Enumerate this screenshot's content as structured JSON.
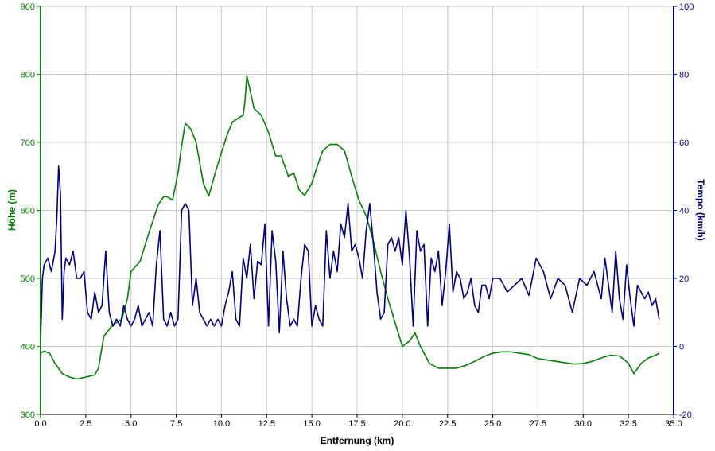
{
  "chart_data": {
    "type": "line",
    "xlabel": "Entfernung (km)",
    "ylabel_left": "Höhe (m)",
    "ylabel_right": "Tempo (km/h)",
    "xlim": [
      0,
      35
    ],
    "ylim_left": [
      300,
      900
    ],
    "ylim_right": [
      -20,
      100
    ],
    "x_ticks": [
      "0.0",
      "2.5",
      "5.0",
      "7.5",
      "10.0",
      "12.5",
      "15.0",
      "17.5",
      "20.0",
      "22.5",
      "25.0",
      "27.5",
      "30.0",
      "32.5",
      "35.0"
    ],
    "y_left_ticks": [
      "300",
      "400",
      "500",
      "600",
      "700",
      "800",
      "900"
    ],
    "y_right_ticks": [
      "-20",
      "0",
      "20",
      "40",
      "60",
      "80",
      "100"
    ],
    "grid": true,
    "colors": {
      "elevation": "#008000",
      "speed": "#00007f",
      "grid": "#c8c8c8",
      "axis_left": "#008000",
      "axis_right": "#00007f",
      "axis_bottom": "#000000"
    },
    "series": [
      {
        "axis": "left",
        "x": [
          0.0,
          0.2,
          0.5,
          0.8,
          1.2,
          1.6,
          2.0,
          2.5,
          3.0,
          3.2,
          3.5,
          4.0,
          4.5,
          4.8,
          5.0,
          5.5,
          6.0,
          6.5,
          6.8,
          7.0,
          7.3,
          7.6,
          7.8,
          8.0,
          8.3,
          8.6,
          8.8,
          9.0,
          9.3,
          9.6,
          10.0,
          10.3,
          10.6,
          11.0,
          11.2,
          11.3,
          11.4,
          11.6,
          11.8,
          12.2,
          12.6,
          13.0,
          13.3,
          13.7,
          14.0,
          14.3,
          14.6,
          15.0,
          15.3,
          15.6,
          16.0,
          16.4,
          16.8,
          17.2,
          17.6,
          18.0,
          18.4,
          18.8,
          19.2,
          19.6,
          20.0,
          20.4,
          20.7,
          21.0,
          21.5,
          22.0,
          22.5,
          23.0,
          23.5,
          24.0,
          24.5,
          25.0,
          25.5,
          26.0,
          26.5,
          27.0,
          27.5,
          28.0,
          28.5,
          29.0,
          29.5,
          30.0,
          30.5,
          31.0,
          31.5,
          32.0,
          32.3,
          32.5,
          32.8,
          33.2,
          33.6,
          34.0,
          34.2
        ],
        "y": [
          390,
          393,
          390,
          375,
          360,
          355,
          352,
          355,
          358,
          368,
          415,
          432,
          440,
          470,
          510,
          525,
          568,
          608,
          620,
          620,
          615,
          655,
          695,
          728,
          720,
          700,
          670,
          640,
          621,
          650,
          685,
          710,
          730,
          737,
          740,
          760,
          798,
          775,
          750,
          740,
          715,
          680,
          680,
          650,
          655,
          630,
          622,
          640,
          665,
          688,
          697,
          697,
          688,
          650,
          615,
          592,
          555,
          510,
          470,
          435,
          400,
          408,
          420,
          400,
          375,
          368,
          368,
          368,
          372,
          378,
          385,
          390,
          392,
          392,
          390,
          388,
          382,
          380,
          378,
          376,
          374,
          375,
          378,
          383,
          387,
          386,
          380,
          375,
          360,
          375,
          383,
          387,
          390
        ]
      },
      {
        "axis": "right",
        "x": [
          0.0,
          0.1,
          0.2,
          0.4,
          0.6,
          0.8,
          0.9,
          1.0,
          1.1,
          1.2,
          1.3,
          1.4,
          1.6,
          1.8,
          2.0,
          2.2,
          2.4,
          2.6,
          2.8,
          3.0,
          3.2,
          3.4,
          3.6,
          3.8,
          4.0,
          4.2,
          4.4,
          4.6,
          4.8,
          5.0,
          5.2,
          5.4,
          5.6,
          5.8,
          6.0,
          6.2,
          6.4,
          6.6,
          6.8,
          7.0,
          7.2,
          7.4,
          7.6,
          7.8,
          8.0,
          8.2,
          8.4,
          8.6,
          8.8,
          9.0,
          9.2,
          9.4,
          9.6,
          9.8,
          10.0,
          10.2,
          10.4,
          10.6,
          10.8,
          11.0,
          11.2,
          11.4,
          11.6,
          11.8,
          12.0,
          12.2,
          12.4,
          12.6,
          12.8,
          13.0,
          13.2,
          13.4,
          13.6,
          13.8,
          14.0,
          14.2,
          14.4,
          14.6,
          14.8,
          15.0,
          15.2,
          15.4,
          15.6,
          15.8,
          16.0,
          16.2,
          16.4,
          16.6,
          16.8,
          17.0,
          17.2,
          17.4,
          17.6,
          17.8,
          18.0,
          18.2,
          18.4,
          18.6,
          18.8,
          19.0,
          19.2,
          19.4,
          19.6,
          19.8,
          20.0,
          20.2,
          20.4,
          20.6,
          20.8,
          21.0,
          21.2,
          21.4,
          21.6,
          21.8,
          22.0,
          22.2,
          22.4,
          22.6,
          22.8,
          23.0,
          23.2,
          23.4,
          23.6,
          23.8,
          24.0,
          24.2,
          24.4,
          24.6,
          24.8,
          25.0,
          25.4,
          25.8,
          26.2,
          26.6,
          27.0,
          27.4,
          27.8,
          28.2,
          28.6,
          29.0,
          29.4,
          29.8,
          30.2,
          30.6,
          31.0,
          31.2,
          31.4,
          31.6,
          31.8,
          32.0,
          32.2,
          32.4,
          32.6,
          32.8,
          33.0,
          33.2,
          33.4,
          33.6,
          33.8,
          34.0,
          34.2
        ],
        "y": [
          2,
          20,
          24,
          26,
          22,
          28,
          38,
          53,
          45,
          8,
          22,
          26,
          24,
          28,
          20,
          20,
          22,
          10,
          8,
          16,
          10,
          12,
          28,
          10,
          6,
          8,
          6,
          12,
          8,
          6,
          8,
          12,
          6,
          8,
          10,
          6,
          24,
          34,
          8,
          6,
          10,
          6,
          8,
          40,
          42,
          40,
          12,
          20,
          10,
          8,
          6,
          8,
          6,
          8,
          6,
          12,
          16,
          22,
          8,
          6,
          26,
          20,
          30,
          14,
          25,
          24,
          36,
          6,
          34,
          25,
          4,
          28,
          14,
          6,
          8,
          6,
          20,
          30,
          28,
          6,
          12,
          8,
          6,
          34,
          20,
          28,
          22,
          36,
          32,
          42,
          28,
          30,
          26,
          20,
          34,
          42,
          30,
          16,
          8,
          10,
          30,
          32,
          28,
          32,
          24,
          40,
          26,
          6,
          34,
          28,
          30,
          6,
          26,
          22,
          28,
          12,
          22,
          36,
          16,
          22,
          20,
          14,
          16,
          20,
          12,
          10,
          18,
          18,
          14,
          20,
          20,
          16,
          18,
          20,
          15,
          26,
          22,
          14,
          20,
          18,
          10,
          20,
          18,
          22,
          14,
          26,
          18,
          10,
          28,
          14,
          8,
          24,
          14,
          6,
          18,
          16,
          14,
          16,
          12,
          14,
          8
        ]
      }
    ]
  }
}
